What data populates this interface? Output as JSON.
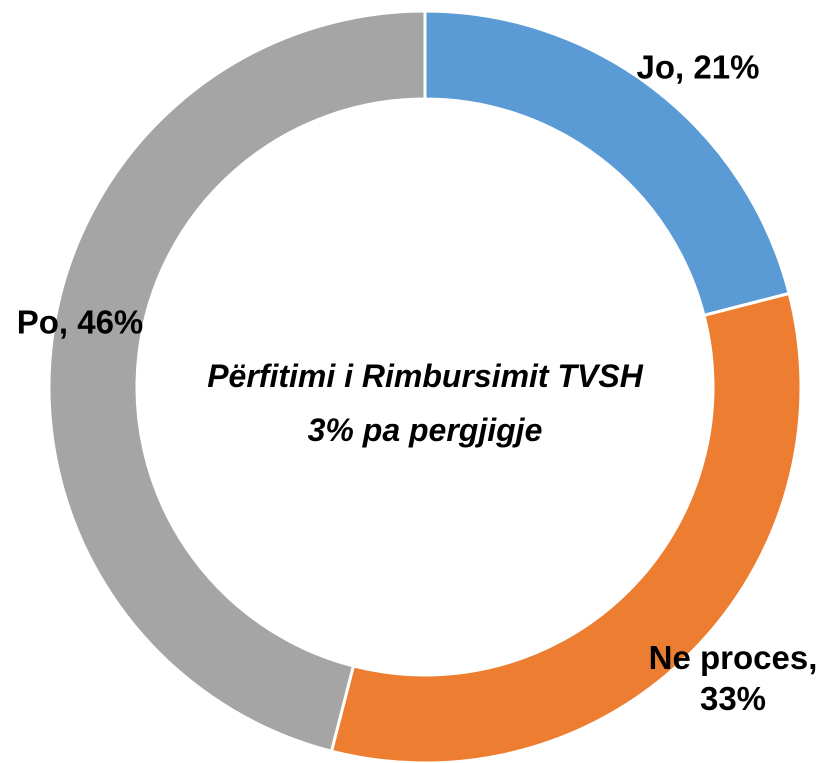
{
  "chart_data": {
    "type": "donut",
    "values": [
      21,
      33,
      46
    ],
    "value_labels": [
      "Jo, 21%",
      "Ne proces, 33%",
      "Po, 46%"
    ],
    "colors": [
      "#5b9bd5",
      "#ed7d31",
      "#a5a5a5"
    ],
    "annotations": [
      "Përfitimi i Rimbursimit TVSH",
      "3% pa pergjigje"
    ]
  }
}
